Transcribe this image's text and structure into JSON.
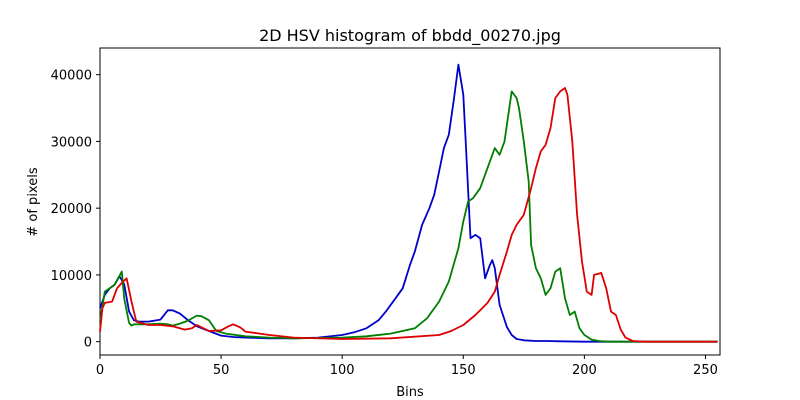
{
  "chart_data": {
    "type": "line",
    "title": "2D HSV histogram of bbdd_00270.jpg",
    "xlabel": "Bins",
    "ylabel": "# of pixels",
    "xlim": [
      0,
      256
    ],
    "ylim": [
      -2000,
      44000
    ],
    "xticks": [
      0,
      50,
      100,
      150,
      200,
      250
    ],
    "yticks": [
      0,
      10000,
      20000,
      30000,
      40000
    ],
    "grid": false,
    "series": [
      {
        "name": "blue",
        "color": "#0000cc",
        "x": [
          0,
          2,
          4,
          6,
          8,
          10,
          12,
          14,
          16,
          20,
          25,
          28,
          30,
          33,
          36,
          40,
          45,
          50,
          55,
          60,
          70,
          80,
          90,
          100,
          105,
          110,
          115,
          118,
          122,
          125,
          128,
          130,
          133,
          136,
          138,
          140,
          142,
          144,
          146,
          148,
          150,
          151,
          153,
          155,
          157,
          159,
          161,
          162,
          163,
          165,
          168,
          170,
          172,
          175,
          180,
          185,
          190,
          200,
          210,
          255
        ],
        "y": [
          5000,
          7000,
          8000,
          8500,
          9800,
          8600,
          4500,
          3200,
          3000,
          3000,
          3300,
          4700,
          4700,
          4200,
          3300,
          2300,
          1600,
          900,
          700,
          600,
          500,
          500,
          600,
          1000,
          1400,
          2000,
          3200,
          4500,
          6500,
          8000,
          11500,
          13500,
          17500,
          20000,
          22000,
          25500,
          29000,
          31000,
          36000,
          41500,
          37000,
          30000,
          15500,
          16000,
          15500,
          9500,
          11500,
          12200,
          11000,
          5500,
          2200,
          1000,
          400,
          200,
          100,
          100,
          50,
          0,
          0,
          0
        ]
      },
      {
        "name": "green",
        "color": "#007f00",
        "x": [
          0,
          2,
          4,
          6,
          9,
          10,
          12,
          13,
          14,
          20,
          25,
          28,
          30,
          33,
          36,
          40,
          42,
          45,
          48,
          52,
          60,
          70,
          80,
          100,
          110,
          120,
          130,
          135,
          140,
          144,
          148,
          150,
          152,
          154,
          157,
          160,
          163,
          165,
          167,
          169,
          170,
          172,
          173,
          175,
          177,
          178,
          180,
          182,
          184,
          186,
          188,
          190,
          192,
          194,
          196,
          198,
          200,
          203,
          206,
          210,
          220,
          255
        ],
        "y": [
          3000,
          7500,
          8000,
          8500,
          10500,
          6500,
          2800,
          2400,
          2600,
          2600,
          2700,
          2600,
          2400,
          2700,
          3100,
          3900,
          3800,
          3200,
          1600,
          1200,
          800,
          600,
          500,
          600,
          800,
          1200,
          2000,
          3500,
          6000,
          9000,
          14000,
          18000,
          21000,
          21500,
          23000,
          26000,
          29000,
          28000,
          30000,
          35000,
          37500,
          36500,
          35000,
          30000,
          24000,
          14500,
          11000,
          9500,
          7000,
          8000,
          10500,
          11000,
          6500,
          4000,
          4500,
          2000,
          1000,
          300,
          100,
          0,
          0,
          0
        ]
      },
      {
        "name": "red",
        "color": "#dd0000",
        "x": [
          0,
          1,
          2,
          5,
          7,
          9,
          11,
          13,
          15,
          20,
          25,
          30,
          35,
          38,
          40,
          45,
          50,
          53,
          55,
          58,
          60,
          70,
          80,
          100,
          120,
          140,
          145,
          150,
          155,
          160,
          163,
          165,
          168,
          170,
          172,
          175,
          178,
          180,
          182,
          184,
          186,
          188,
          190,
          192,
          193,
          195,
          197,
          199,
          201,
          203,
          204,
          206,
          207,
          209,
          211,
          213,
          215,
          217,
          220,
          225,
          230,
          255
        ],
        "y": [
          1500,
          5000,
          5800,
          6000,
          8000,
          8800,
          9500,
          6000,
          3000,
          2500,
          2500,
          2300,
          1800,
          2000,
          2500,
          1600,
          1700,
          2300,
          2600,
          2100,
          1500,
          1000,
          600,
          400,
          500,
          1000,
          1600,
          2500,
          4000,
          5800,
          7500,
          10000,
          13500,
          16000,
          17500,
          19000,
          23000,
          26000,
          28500,
          29500,
          32000,
          36500,
          37500,
          38000,
          37000,
          30000,
          19000,
          12000,
          7500,
          7000,
          10000,
          10200,
          10300,
          8000,
          4500,
          4000,
          1800,
          600,
          100,
          0,
          0,
          0
        ]
      }
    ]
  }
}
